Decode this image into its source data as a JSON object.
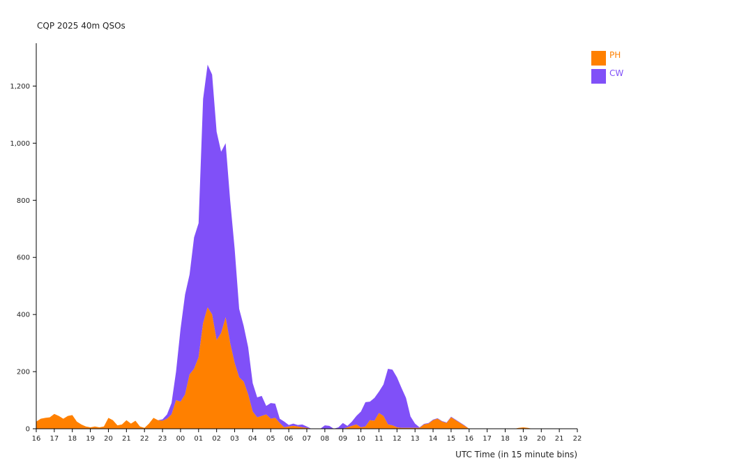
{
  "chart_data": {
    "type": "area",
    "stacked": true,
    "title": "CQP 2025 40m QSOs",
    "xlabel": "UTC Time (in 15 minute bins)",
    "ylabel": "",
    "ylim": [
      0,
      1350
    ],
    "y_ticks": [
      0,
      200,
      400,
      600,
      800,
      1000,
      1200
    ],
    "y_tick_labels": [
      "0",
      "200",
      "400",
      "600",
      "800",
      "1,000",
      "1,200"
    ],
    "x_ticks": [
      "16",
      "17",
      "18",
      "19",
      "20",
      "21",
      "22",
      "23",
      "00",
      "01",
      "02",
      "03",
      "04",
      "05",
      "06",
      "07",
      "08",
      "09",
      "10",
      "11",
      "12",
      "13",
      "14",
      "15",
      "16",
      "17",
      "18",
      "19",
      "20",
      "21",
      "22"
    ],
    "x_range_hours": [
      0,
      30
    ],
    "bin_minutes": 15,
    "legend_position": "top-right",
    "x": [
      0,
      0.25,
      0.5,
      0.75,
      1,
      1.25,
      1.5,
      1.75,
      2,
      2.25,
      2.5,
      2.75,
      3,
      3.25,
      3.5,
      3.75,
      4,
      4.25,
      4.5,
      4.75,
      5,
      5.25,
      5.5,
      5.75,
      6,
      6.25,
      6.5,
      6.75,
      7,
      7.25,
      7.5,
      7.75,
      8,
      8.25,
      8.5,
      8.75,
      9,
      9.25,
      9.5,
      9.75,
      10,
      10.25,
      10.5,
      10.75,
      11,
      11.25,
      11.5,
      11.75,
      12,
      12.25,
      12.5,
      12.75,
      13,
      13.25,
      13.5,
      13.75,
      14,
      14.25,
      14.5,
      14.75,
      15,
      15.25,
      15.5,
      15.75,
      16,
      16.25,
      16.5,
      16.75,
      17,
      17.25,
      17.5,
      17.75,
      18,
      18.25,
      18.5,
      18.75,
      19,
      19.25,
      19.5,
      19.75,
      20,
      20.25,
      20.5,
      20.75,
      21,
      21.25,
      21.5,
      21.75,
      22,
      22.25,
      22.5,
      22.75,
      23,
      23.25,
      23.5,
      23.75,
      24,
      24.25,
      24.5,
      24.75,
      25,
      25.25,
      25.5,
      25.75,
      26,
      26.25,
      26.5,
      26.75,
      27,
      27.25,
      27.5,
      27.75,
      28,
      28.25,
      28.5,
      28.75,
      29,
      29.25,
      29.5,
      29.75,
      30
    ],
    "series": [
      {
        "name": "PH",
        "color": "#ff8000",
        "values": [
          25,
          35,
          38,
          40,
          52,
          45,
          35,
          45,
          48,
          25,
          15,
          8,
          5,
          8,
          5,
          8,
          38,
          30,
          12,
          15,
          30,
          18,
          28,
          8,
          3,
          18,
          38,
          30,
          28,
          35,
          50,
          100,
          95,
          120,
          190,
          210,
          250,
          370,
          425,
          400,
          310,
          335,
          390,
          300,
          230,
          180,
          165,
          120,
          60,
          40,
          45,
          50,
          35,
          38,
          20,
          5,
          8,
          10,
          8,
          5,
          3,
          0,
          0,
          0,
          0,
          0,
          0,
          0,
          0,
          5,
          10,
          15,
          5,
          8,
          30,
          28,
          55,
          45,
          15,
          12,
          5,
          3,
          3,
          3,
          3,
          3,
          15,
          18,
          30,
          35,
          25,
          20,
          40,
          30,
          20,
          10,
          0,
          0,
          0,
          0,
          0,
          0,
          0,
          0,
          0,
          0,
          0,
          3,
          5,
          3,
          0,
          0,
          0,
          0,
          0,
          0,
          0,
          0,
          0,
          0,
          0
        ]
      },
      {
        "name": "CW",
        "color": "#8050f8",
        "values": [
          0,
          0,
          0,
          0,
          0,
          0,
          0,
          0,
          0,
          0,
          0,
          0,
          0,
          0,
          0,
          0,
          0,
          0,
          0,
          0,
          0,
          0,
          0,
          0,
          0,
          0,
          0,
          0,
          5,
          15,
          40,
          100,
          255,
          350,
          350,
          460,
          470,
          785,
          850,
          840,
          730,
          635,
          610,
          500,
          400,
          240,
          195,
          165,
          100,
          70,
          70,
          30,
          55,
          50,
          15,
          20,
          5,
          8,
          5,
          10,
          5,
          0,
          0,
          0,
          12,
          10,
          0,
          5,
          20,
          5,
          15,
          30,
          55,
          85,
          65,
          80,
          75,
          110,
          195,
          195,
          175,
          140,
          105,
          40,
          15,
          2,
          2,
          2,
          2,
          2,
          2,
          2,
          2,
          2,
          2,
          2,
          0,
          0,
          0,
          0,
          0,
          0,
          0,
          0,
          0,
          0,
          0,
          0,
          0,
          0,
          0,
          0,
          0,
          0,
          0,
          0,
          0,
          0,
          0,
          0,
          0
        ]
      }
    ]
  }
}
